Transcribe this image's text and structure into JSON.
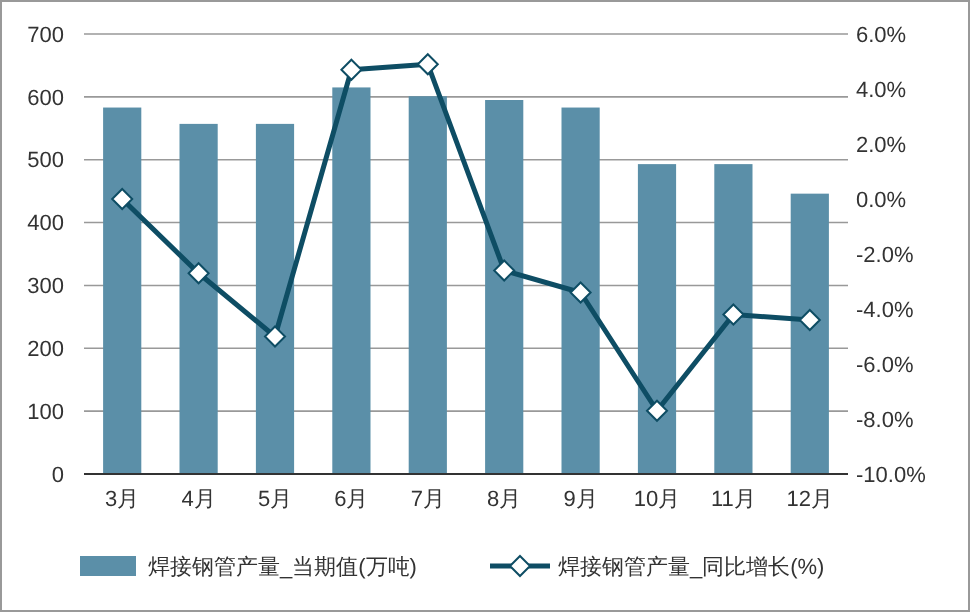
{
  "chart_data": {
    "type": "bar",
    "categories": [
      "3月",
      "4月",
      "5月",
      "6月",
      "7月",
      "8月",
      "9月",
      "10月",
      "11月",
      "12月"
    ],
    "series": [
      {
        "name": "焊接钢管产量_当期值(万吨)",
        "color": "#5b8fa8",
        "values": [
          583,
          557,
          557,
          615,
          601,
          595,
          583,
          493,
          493,
          446
        ]
      },
      {
        "name": "焊接钢管产量_同比增长(%)",
        "type": "line",
        "axis": "y2",
        "color": "#0e4d64",
        "marker": "diamond",
        "values": [
          0.0,
          -2.7,
          -5.0,
          4.7,
          4.9,
          -2.6,
          -3.4,
          -7.7,
          -4.2,
          -4.4
        ]
      }
    ],
    "ylim": [
      0,
      700
    ],
    "yticks": [
      0,
      100,
      200,
      300,
      400,
      500,
      600,
      700
    ],
    "y2lim": [
      -10,
      6
    ],
    "y2ticks": [
      {
        "value": -10,
        "label": "-10.0%"
      },
      {
        "value": -8,
        "label": "-8.0%"
      },
      {
        "value": -6,
        "label": "-6.0%"
      },
      {
        "value": -4,
        "label": "-4.0%"
      },
      {
        "value": -2,
        "label": "-2.0%"
      },
      {
        "value": 0,
        "label": "0.0%"
      },
      {
        "value": 2,
        "label": "2.0%"
      },
      {
        "value": 4,
        "label": "4.0%"
      },
      {
        "value": 6,
        "label": "6.0%"
      }
    ],
    "grid": "y",
    "legend": "bottom"
  }
}
